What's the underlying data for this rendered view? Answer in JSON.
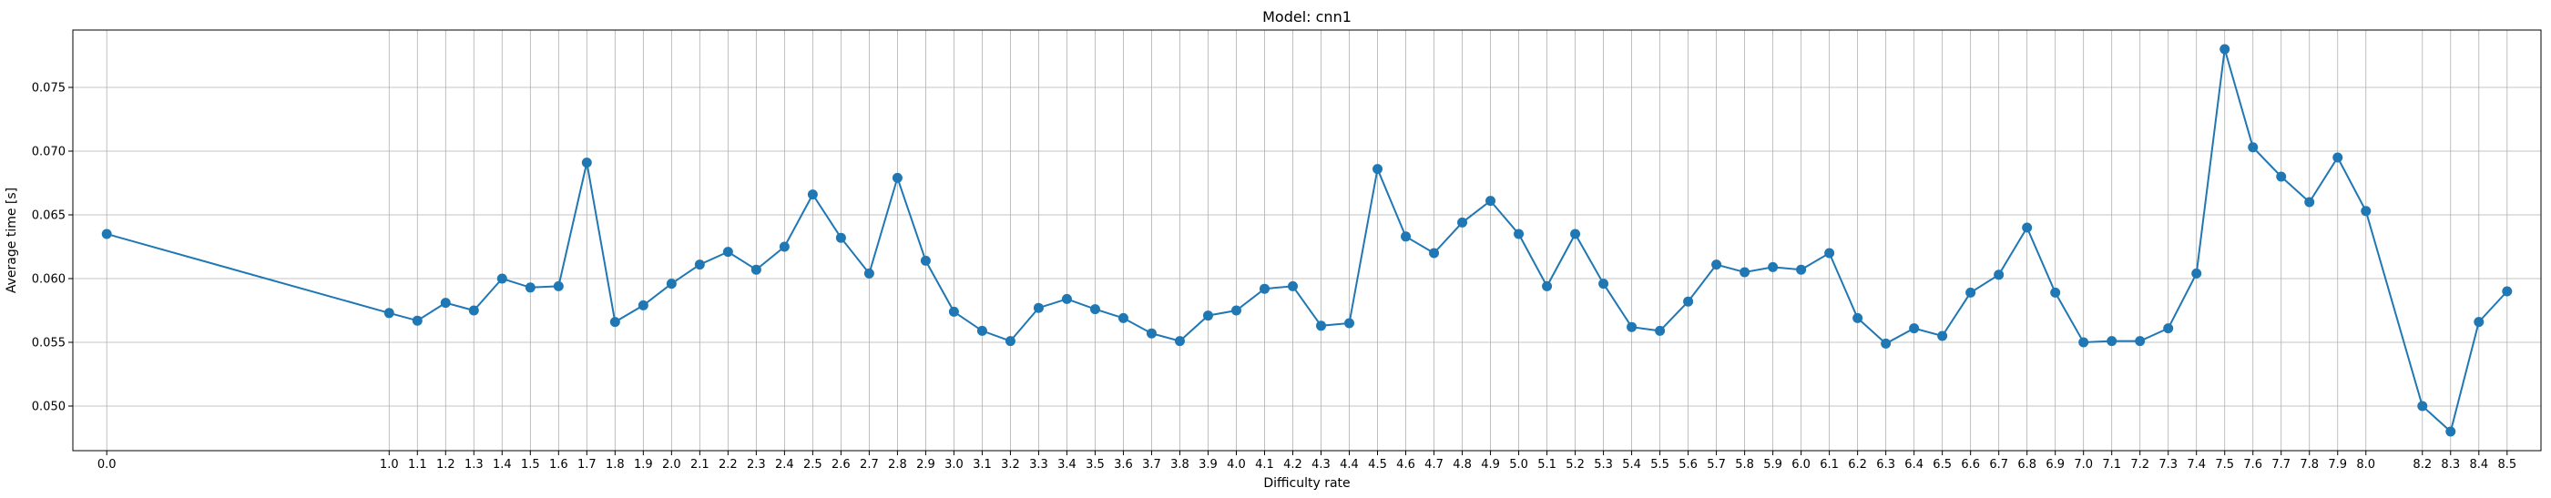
{
  "chart_data": {
    "type": "line",
    "title": "Model: cnn1",
    "xlabel": "Difficulty rate",
    "ylabel": "Average time [s]",
    "marker": "circle",
    "line_color": "#1f77b4",
    "grid": true,
    "x": [
      0.0,
      1.0,
      1.1,
      1.2,
      1.3,
      1.4,
      1.5,
      1.6,
      1.7,
      1.8,
      1.9,
      2.0,
      2.1,
      2.2,
      2.3,
      2.4,
      2.5,
      2.6,
      2.7,
      2.8,
      2.9,
      3.0,
      3.1,
      3.2,
      3.3,
      3.4,
      3.5,
      3.6,
      3.7,
      3.8,
      3.9,
      4.0,
      4.1,
      4.2,
      4.3,
      4.4,
      4.5,
      4.6,
      4.7,
      4.8,
      4.9,
      5.0,
      5.1,
      5.2,
      5.3,
      5.4,
      5.5,
      5.6,
      5.7,
      5.8,
      5.9,
      6.0,
      6.1,
      6.2,
      6.3,
      6.4,
      6.5,
      6.6,
      6.7,
      6.8,
      6.9,
      7.0,
      7.1,
      7.2,
      7.3,
      7.4,
      7.5,
      7.6,
      7.7,
      7.8,
      7.9,
      8.0,
      8.2,
      8.3,
      8.4,
      8.5
    ],
    "x_tick_labels": [
      "0.0",
      "1.0",
      "1.1",
      "1.2",
      "1.3",
      "1.4",
      "1.5",
      "1.6",
      "1.7",
      "1.8",
      "1.9",
      "2.0",
      "2.1",
      "2.2",
      "2.3",
      "2.4",
      "2.5",
      "2.6",
      "2.7",
      "2.8",
      "2.9",
      "3.0",
      "3.1",
      "3.2",
      "3.3",
      "3.4",
      "3.5",
      "3.6",
      "3.7",
      "3.8",
      "3.9",
      "4.0",
      "4.1",
      "4.2",
      "4.3",
      "4.4",
      "4.5",
      "4.6",
      "4.7",
      "4.8",
      "4.9",
      "5.0",
      "5.1",
      "5.2",
      "5.3",
      "5.4",
      "5.5",
      "5.6",
      "5.7",
      "5.8",
      "5.9",
      "6.0",
      "6.1",
      "6.2",
      "6.3",
      "6.4",
      "6.5",
      "6.6",
      "6.7",
      "6.8",
      "6.9",
      "7.0",
      "7.1",
      "7.2",
      "7.3",
      "7.4",
      "7.5",
      "7.6",
      "7.7",
      "7.8",
      "7.9",
      "8.0",
      "8.2",
      "8.3",
      "8.4",
      "8.5"
    ],
    "y": [
      0.0635,
      0.0573,
      0.0567,
      0.0581,
      0.0575,
      0.06,
      0.0593,
      0.0594,
      0.0691,
      0.0566,
      0.0579,
      0.0596,
      0.0611,
      0.0621,
      0.0607,
      0.0625,
      0.0666,
      0.0632,
      0.0604,
      0.0679,
      0.0614,
      0.0574,
      0.0559,
      0.0551,
      0.0577,
      0.0584,
      0.0576,
      0.0569,
      0.0557,
      0.0551,
      0.0571,
      0.0575,
      0.0592,
      0.0594,
      0.0563,
      0.0565,
      0.0686,
      0.0633,
      0.062,
      0.0644,
      0.0661,
      0.0635,
      0.0594,
      0.0635,
      0.0596,
      0.0562,
      0.0559,
      0.0582,
      0.0611,
      0.0605,
      0.0609,
      0.0607,
      0.062,
      0.0569,
      0.0549,
      0.0561,
      0.0555,
      0.0589,
      0.0603,
      0.064,
      0.0589,
      0.055,
      0.0551,
      0.0551,
      0.0561,
      0.0604,
      0.078,
      0.0703,
      0.068,
      0.066,
      0.0695,
      0.0653,
      0.05,
      0.048,
      0.0566,
      0.059
    ],
    "y_ticks": [
      0.05,
      0.055,
      0.06,
      0.065,
      0.07,
      0.075
    ],
    "y_tick_labels": [
      "0.050",
      "0.055",
      "0.060",
      "0.065",
      "0.070",
      "0.075"
    ],
    "xlim": [
      -0.12,
      8.62
    ],
    "ylim": [
      0.0465,
      0.0795
    ]
  }
}
